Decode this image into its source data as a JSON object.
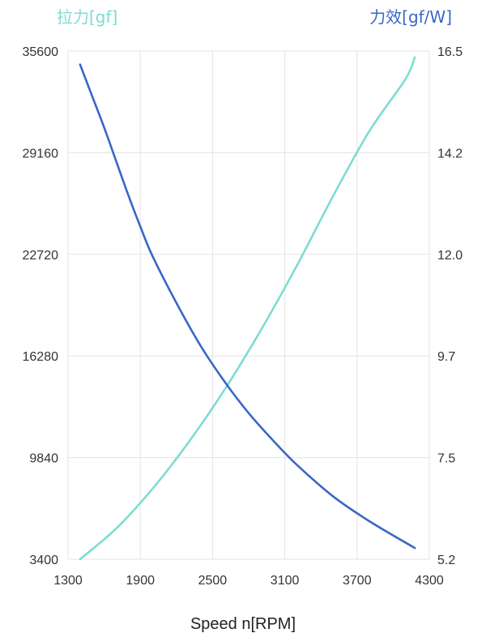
{
  "chart_data": {
    "type": "line",
    "xlabel": "Speed n[RPM]",
    "x_ticks": [
      "1300",
      "1900",
      "2500",
      "3100",
      "3700",
      "4300"
    ],
    "xlim": [
      1300,
      4300
    ],
    "y_left": {
      "label": "拉力[gf]",
      "ticks": [
        "3400",
        "9840",
        "16280",
        "22720",
        "29160",
        "35600"
      ],
      "ylim": [
        3400,
        35600
      ],
      "color": "#7edcd2"
    },
    "y_right": {
      "label": "力效[gf/W]",
      "ticks": [
        "5.2",
        "7.5",
        "9.7",
        "12.0",
        "14.2",
        "16.5"
      ],
      "ylim": [
        5.2,
        16.5
      ],
      "color": "#3a67c7"
    },
    "grid": true,
    "series": [
      {
        "name": "拉力[gf]",
        "axis": "left",
        "color": "#7edcd2",
        "x": [
          1400,
          1700,
          2000,
          2300,
          2600,
          2900,
          3200,
          3500,
          3800,
          4100,
          4180
        ],
        "values": [
          3400,
          5350,
          7850,
          10800,
          14150,
          17900,
          22000,
          26400,
          30500,
          33800,
          35200
        ]
      },
      {
        "name": "力效[gf/W]",
        "axis": "right",
        "color": "#3a67c7",
        "x": [
          1400,
          1500,
          1600,
          1700,
          1800,
          1900,
          2000,
          2200,
          2400,
          2600,
          2800,
          3000,
          3200,
          3500,
          3800,
          4180
        ],
        "values": [
          16.2,
          15.5,
          14.8,
          14.05,
          13.3,
          12.6,
          11.95,
          10.9,
          9.95,
          9.15,
          8.45,
          7.85,
          7.3,
          6.6,
          6.05,
          5.45
        ]
      }
    ]
  }
}
